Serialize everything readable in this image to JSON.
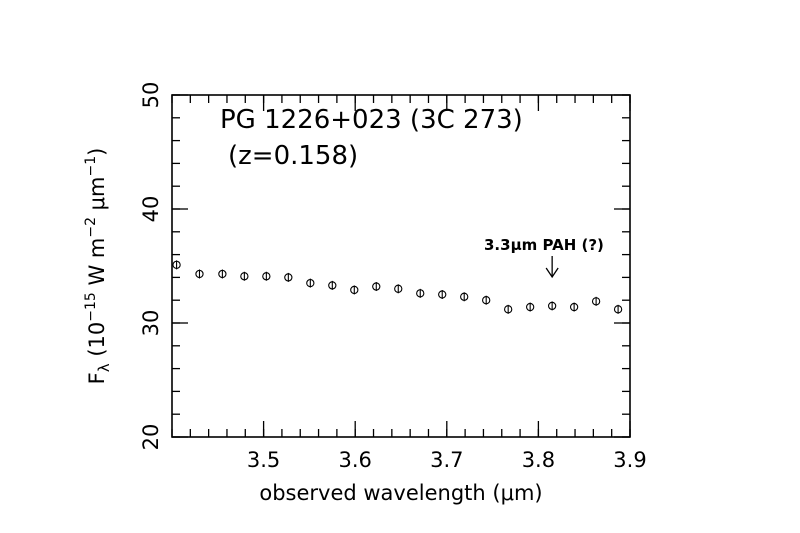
{
  "chart_data": {
    "type": "scatter",
    "title": "PG 1226+023 (3C 273)",
    "subtitle": "(z=0.158)",
    "xlabel_pre": "observed wavelength (",
    "xlabel_mu": "μ",
    "xlabel_post": "m)",
    "ylabel_F": "F",
    "ylabel_lambda": "λ",
    "ylabel_open": "(10",
    "ylabel_exp1": "−15",
    "ylabel_mid": " W m",
    "ylabel_exp2": "−2",
    "ylabel_mu": " μm",
    "ylabel_exp3": "−1",
    "ylabel_close": ")",
    "xlim": [
      3.4,
      3.9
    ],
    "ylim": [
      20,
      50
    ],
    "xticks": [
      {
        "value": 3.5,
        "label": "3.5"
      },
      {
        "value": 3.6,
        "label": "3.6"
      },
      {
        "value": 3.7,
        "label": "3.7"
      },
      {
        "value": 3.8,
        "label": "3.8"
      },
      {
        "value": 3.9,
        "label": "3.9"
      }
    ],
    "yticks": [
      {
        "value": 20,
        "label": "20"
      },
      {
        "value": 30,
        "label": "30"
      },
      {
        "value": 40,
        "label": "40"
      },
      {
        "value": 50,
        "label": "50"
      }
    ],
    "x_minor_step": 0.02,
    "y_minor_step": 2,
    "x": [
      3.405,
      3.43,
      3.455,
      3.479,
      3.503,
      3.527,
      3.551,
      3.575,
      3.599,
      3.623,
      3.647,
      3.671,
      3.695,
      3.719,
      3.743,
      3.767,
      3.791,
      3.815,
      3.839,
      3.863,
      3.887
    ],
    "y": [
      35.1,
      34.3,
      34.3,
      34.1,
      34.1,
      34.0,
      33.5,
      33.3,
      32.9,
      33.2,
      33.0,
      32.6,
      32.5,
      32.3,
      32.0,
      31.2,
      31.4,
      31.5,
      31.4,
      31.9,
      31.2
    ],
    "annotation": {
      "text_pre": "3.3",
      "text_mu": "μ",
      "text_post": "m PAH (?)",
      "arrow_x": 3.815
    }
  }
}
